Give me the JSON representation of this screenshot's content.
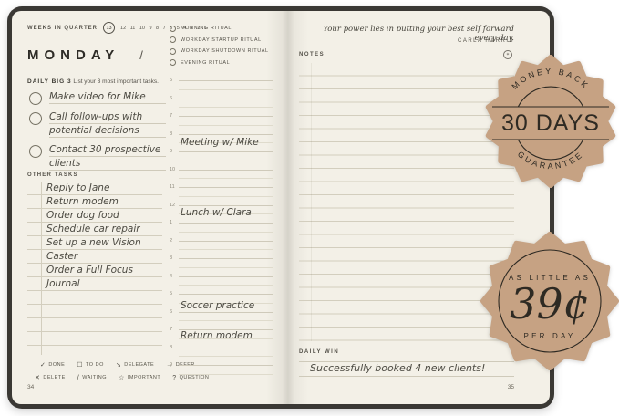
{
  "left_page": {
    "weeks": {
      "label": "WEEKS IN QUARTER",
      "current": "13",
      "numbers": [
        "12",
        "11",
        "10",
        "9",
        "8",
        "7",
        "6",
        "5",
        "4",
        "3",
        "2",
        "1"
      ]
    },
    "day_title": "MONDAY",
    "date_placeholder": "/",
    "big3": {
      "label": "DAILY BIG 3",
      "sublabel": "List your 3 most important tasks.",
      "tasks": [
        "Make video for Mike",
        "Call follow-ups with potential decisions",
        "Contact 30 prospective clients"
      ]
    },
    "other_tasks": {
      "label": "OTHER TASKS",
      "items": [
        "Reply to Jane",
        "Return modem",
        "Order dog food",
        "Schedule car repair",
        "Set up a new Vision Caster",
        "Order a Full Focus Journal"
      ]
    },
    "legend": {
      "row1": [
        {
          "symbol": "✓",
          "label": "DONE"
        },
        {
          "symbol": "☐",
          "label": "TO DO"
        },
        {
          "symbol": "↘",
          "label": "DELEGATE"
        },
        {
          "symbol": "→",
          "label": "DEFER"
        }
      ],
      "row2": [
        {
          "symbol": "✕",
          "label": "DELETE"
        },
        {
          "symbol": "/",
          "label": "WAITING"
        },
        {
          "symbol": "☆",
          "label": "IMPORTANT"
        },
        {
          "symbol": "?",
          "label": "QUESTION"
        }
      ]
    },
    "page_number": "34"
  },
  "middle": {
    "rituals": [
      "MORNING RITUAL",
      "WORKDAY STARTUP RITUAL",
      "WORKDAY SHUTDOWN RITUAL",
      "EVENING RITUAL"
    ],
    "schedule_hours": [
      "5",
      "6",
      "7",
      "8",
      "9",
      "10",
      "11",
      "12",
      "1",
      "2",
      "3",
      "4",
      "5",
      "6",
      "7",
      "8",
      "9"
    ],
    "entries": [
      {
        "text": "Meeting w/ Mike"
      },
      {
        "text": "Lunch w/ Clara"
      },
      {
        "text": "Soccer practice"
      },
      {
        "text": "Return modem"
      }
    ]
  },
  "right_page": {
    "quote": "Your power lies in putting your best self forward every day.",
    "author": "CARLA HARRIS",
    "notes_label": "NOTES",
    "daily_win_label": "DAILY WIN",
    "daily_win_entry": "Successfully booked 4 new clients!",
    "page_number": "35"
  },
  "badges": [
    {
      "top": "MONEY BACK",
      "center": "30 DAYS",
      "bottom": "GUARANTEE",
      "color": "#c6a283"
    },
    {
      "top": "AS LITTLE AS",
      "center": "39¢",
      "bottom": "PER DAY",
      "color": "#c6a283"
    }
  ]
}
